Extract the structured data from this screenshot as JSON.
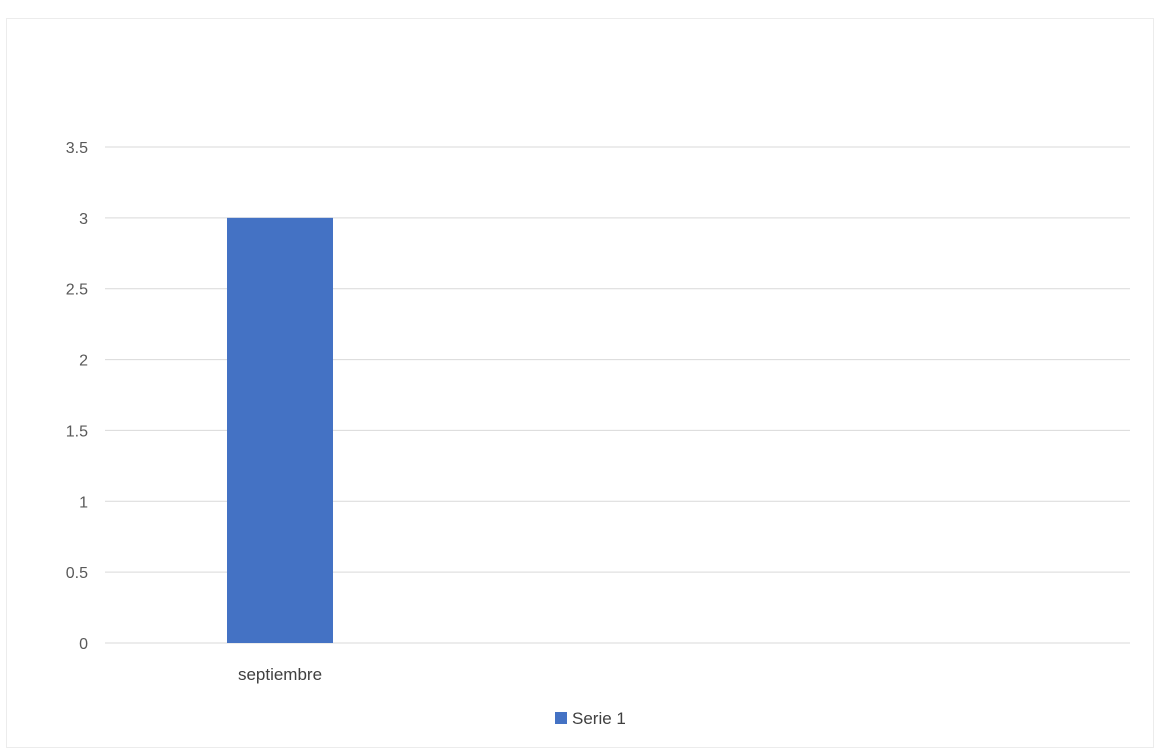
{
  "chart_data": {
    "type": "bar",
    "categories": [
      "septiembre"
    ],
    "series": [
      {
        "name": "Serie 1",
        "values": [
          3
        ],
        "color": "#4472c4"
      }
    ],
    "ylim": [
      0,
      3.5
    ],
    "yticks": [
      "0",
      "0.5",
      "1",
      "1.5",
      "2",
      "2.5",
      "3",
      "3.5"
    ],
    "title": "",
    "xlabel": "",
    "ylabel": "",
    "grid": true,
    "legend": "bottom-center"
  }
}
